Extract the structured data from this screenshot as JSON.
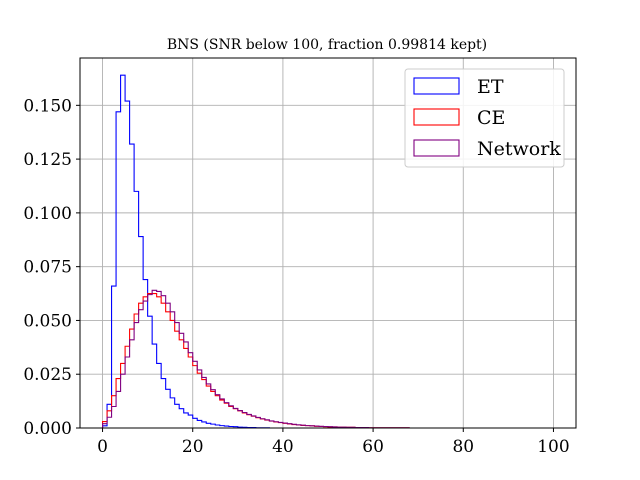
{
  "chart_data": {
    "type": "histogram",
    "title": "BNS (SNR below 100, fraction 0.99814 kept)",
    "xlabel": "",
    "ylabel": "",
    "xlim": [
      -5,
      105
    ],
    "ylim": [
      0,
      0.172
    ],
    "xticks": [
      0,
      20,
      40,
      60,
      80,
      100
    ],
    "xtick_labels": [
      "0",
      "20",
      "40",
      "60",
      "80",
      "100"
    ],
    "yticks": [
      0,
      0.025,
      0.05,
      0.075,
      0.1,
      0.125,
      0.15
    ],
    "ytick_labels": [
      "0.000",
      "0.025",
      "0.050",
      "0.075",
      "0.100",
      "0.125",
      "0.150"
    ],
    "grid": true,
    "legend_position": "upper right",
    "bin_edges": [
      0,
      1,
      2,
      3,
      4,
      5,
      6,
      7,
      8,
      9,
      10,
      11,
      12,
      13,
      14,
      15,
      16,
      17,
      18,
      19,
      20,
      21,
      22,
      23,
      24,
      25,
      26,
      27,
      28,
      29,
      30,
      31,
      32,
      33,
      34,
      35,
      36,
      37,
      38,
      39,
      40,
      41,
      42,
      43,
      44,
      45,
      46,
      47,
      48,
      49,
      50,
      51,
      52,
      53,
      54,
      55,
      56,
      57,
      58,
      59,
      60,
      61,
      62,
      63,
      64,
      65,
      66,
      67,
      68
    ],
    "series": [
      {
        "name": "ET",
        "color": "#0000ff",
        "values": [
          0.001,
          0.011,
          0.066,
          0.147,
          0.164,
          0.152,
          0.132,
          0.11,
          0.089,
          0.069,
          0.052,
          0.039,
          0.03,
          0.023,
          0.018,
          0.014,
          0.011,
          0.009,
          0.007,
          0.006,
          0.0045,
          0.0035,
          0.0028,
          0.0022,
          0.0018,
          0.0014,
          0.0011,
          0.0009,
          0.0007,
          0.0006,
          0.0004,
          0.0003,
          0.0002,
          0.0002,
          0.0001,
          0.0001,
          0.0001,
          0,
          0,
          0,
          0,
          0,
          0,
          0,
          0,
          0,
          0,
          0,
          0,
          0,
          0,
          0,
          0,
          0,
          0,
          0,
          0,
          0,
          0,
          0,
          0,
          0,
          0,
          0,
          0,
          0,
          0,
          0
        ]
      },
      {
        "name": "CE",
        "color": "#ff0000",
        "values": [
          0.003,
          0.008,
          0.015,
          0.023,
          0.03,
          0.038,
          0.046,
          0.053,
          0.058,
          0.061,
          0.0625,
          0.0625,
          0.061,
          0.058,
          0.054,
          0.05,
          0.045,
          0.041,
          0.037,
          0.033,
          0.029,
          0.0255,
          0.0225,
          0.0195,
          0.017,
          0.015,
          0.013,
          0.0115,
          0.01,
          0.009,
          0.008,
          0.007,
          0.0062,
          0.0055,
          0.0048,
          0.0042,
          0.0037,
          0.0032,
          0.0028,
          0.0025,
          0.0022,
          0.0019,
          0.0016,
          0.0014,
          0.0012,
          0.0011,
          0.001,
          0.0008,
          0.0007,
          0.0006,
          0.0005,
          0.0005,
          0.0004,
          0.0004,
          0.0003,
          0.0003,
          0.0002,
          0.0002,
          0.0002,
          0.0001,
          0.0001,
          0.0001,
          0.0001,
          0.0001,
          0.0001,
          0.0001,
          0.0001,
          0.0001
        ]
      },
      {
        "name": "Network",
        "color": "#800080",
        "values": [
          0.002,
          0.005,
          0.01,
          0.017,
          0.025,
          0.033,
          0.041,
          0.049,
          0.055,
          0.059,
          0.062,
          0.064,
          0.0635,
          0.0615,
          0.058,
          0.054,
          0.049,
          0.044,
          0.04,
          0.035,
          0.031,
          0.027,
          0.0235,
          0.0205,
          0.0178,
          0.0155,
          0.0135,
          0.0118,
          0.0103,
          0.0091,
          0.0081,
          0.0072,
          0.0063,
          0.0056,
          0.0049,
          0.0043,
          0.0038,
          0.0033,
          0.0029,
          0.0026,
          0.0023,
          0.002,
          0.0017,
          0.0015,
          0.0013,
          0.0011,
          0.001,
          0.0009,
          0.0008,
          0.0007,
          0.0006,
          0.0005,
          0.0004,
          0.0004,
          0.0003,
          0.0003,
          0.0002,
          0.0002,
          0.0002,
          0.0001,
          0.0001,
          0.0001,
          0.0001,
          0.0001,
          0.0001,
          0.0001,
          0.0001,
          0.0001
        ]
      }
    ]
  }
}
